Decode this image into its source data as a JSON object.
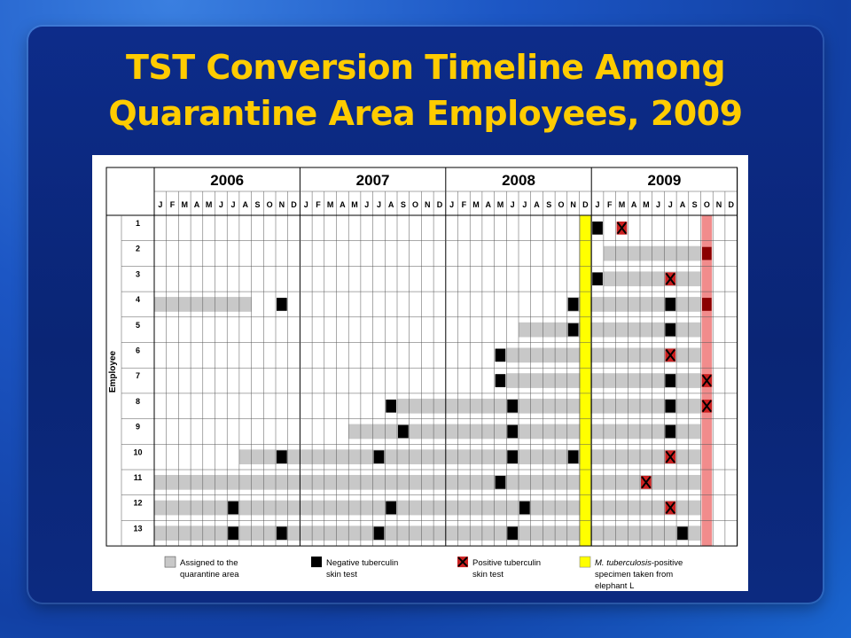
{
  "slide": {
    "title_line1": "TST Conversion Timeline Among",
    "title_line2": "Quarantine Area Employees, 2009"
  },
  "colors": {
    "title": "#ffcc00",
    "assigned": "#c8c8c8",
    "negative": "#000000",
    "positive_fill": "#cc2020",
    "positive_mark": "#000000",
    "mtb_specimen": "#ffff00",
    "highlight_column": "#f08080"
  },
  "chart_data": {
    "type": "table",
    "years": [
      "2006",
      "2007",
      "2008",
      "2009"
    ],
    "months": [
      "J",
      "F",
      "M",
      "A",
      "M",
      "J",
      "J",
      "A",
      "S",
      "O",
      "N",
      "D"
    ],
    "y_axis_label": "Employee",
    "employees": [
      "1",
      "2",
      "3",
      "4",
      "5",
      "6",
      "7",
      "8",
      "9",
      "10",
      "11",
      "12",
      "13"
    ],
    "mtb_specimen_month": "2008-12",
    "highlight_month": "2009-10",
    "assigned": {
      "1": [],
      "2": [
        [
          "2009-02",
          "2009-09"
        ]
      ],
      "3": [
        [
          "2009-02",
          "2009-09"
        ]
      ],
      "4": [
        [
          "2006-01",
          "2006-08"
        ],
        [
          "2008-11",
          "2009-09"
        ]
      ],
      "5": [
        [
          "2008-07",
          "2009-09"
        ]
      ],
      "6": [
        [
          "2008-06",
          "2009-09"
        ]
      ],
      "7": [
        [
          "2008-06",
          "2009-09"
        ]
      ],
      "8": [
        [
          "2007-09",
          "2009-09"
        ]
      ],
      "9": [
        [
          "2007-05",
          "2009-09"
        ]
      ],
      "10": [
        [
          "2006-08",
          "2009-09"
        ]
      ],
      "11": [
        [
          "2006-01",
          "2009-09"
        ]
      ],
      "12": [
        [
          "2006-01",
          "2009-09"
        ]
      ],
      "13": [
        [
          "2006-01",
          "2009-09"
        ]
      ]
    },
    "negative_tests": {
      "1": [
        "2009-01"
      ],
      "2": [],
      "3": [
        "2009-01"
      ],
      "4": [
        "2006-11",
        "2008-11",
        "2009-07"
      ],
      "5": [
        "2008-11",
        "2009-07"
      ],
      "6": [
        "2008-05"
      ],
      "7": [
        "2008-05",
        "2009-07"
      ],
      "8": [
        "2007-08",
        "2008-06",
        "2009-07"
      ],
      "9": [
        "2007-09",
        "2008-06",
        "2009-07"
      ],
      "10": [
        "2006-11",
        "2007-07",
        "2008-06",
        "2008-11"
      ],
      "11": [
        "2008-05"
      ],
      "12": [
        "2006-07",
        "2007-08",
        "2008-07"
      ],
      "13": [
        "2006-07",
        "2006-11",
        "2007-07",
        "2008-06",
        "2009-08"
      ]
    },
    "positive_tests": {
      "1": [
        "2009-03"
      ],
      "2": [],
      "3": [
        "2009-07"
      ],
      "4": [],
      "5": [],
      "6": [
        "2009-07"
      ],
      "7": [],
      "8": [],
      "9": [],
      "10": [
        "2009-07"
      ],
      "11": [
        "2009-05"
      ],
      "12": [
        "2009-07"
      ],
      "13": []
    },
    "highlight_dark": [
      "2",
      "4"
    ],
    "highlight_positive": [
      "7",
      "8"
    ],
    "legend": [
      {
        "key": "assigned",
        "label_line1": "Assigned to the",
        "label_line2": "quarantine area",
        "label_line3": ""
      },
      {
        "key": "negative",
        "label_line1": "Negative tuberculin",
        "label_line2": "skin test",
        "label_line3": ""
      },
      {
        "key": "positive",
        "label_line1": "Positive tuberculin",
        "label_line2": "skin test",
        "label_line3": ""
      },
      {
        "key": "mtb",
        "label_italic": "M. tuberculosis",
        "label_line1": "-positive",
        "label_line2": "specimen taken from",
        "label_line3": "elephant L"
      }
    ]
  }
}
